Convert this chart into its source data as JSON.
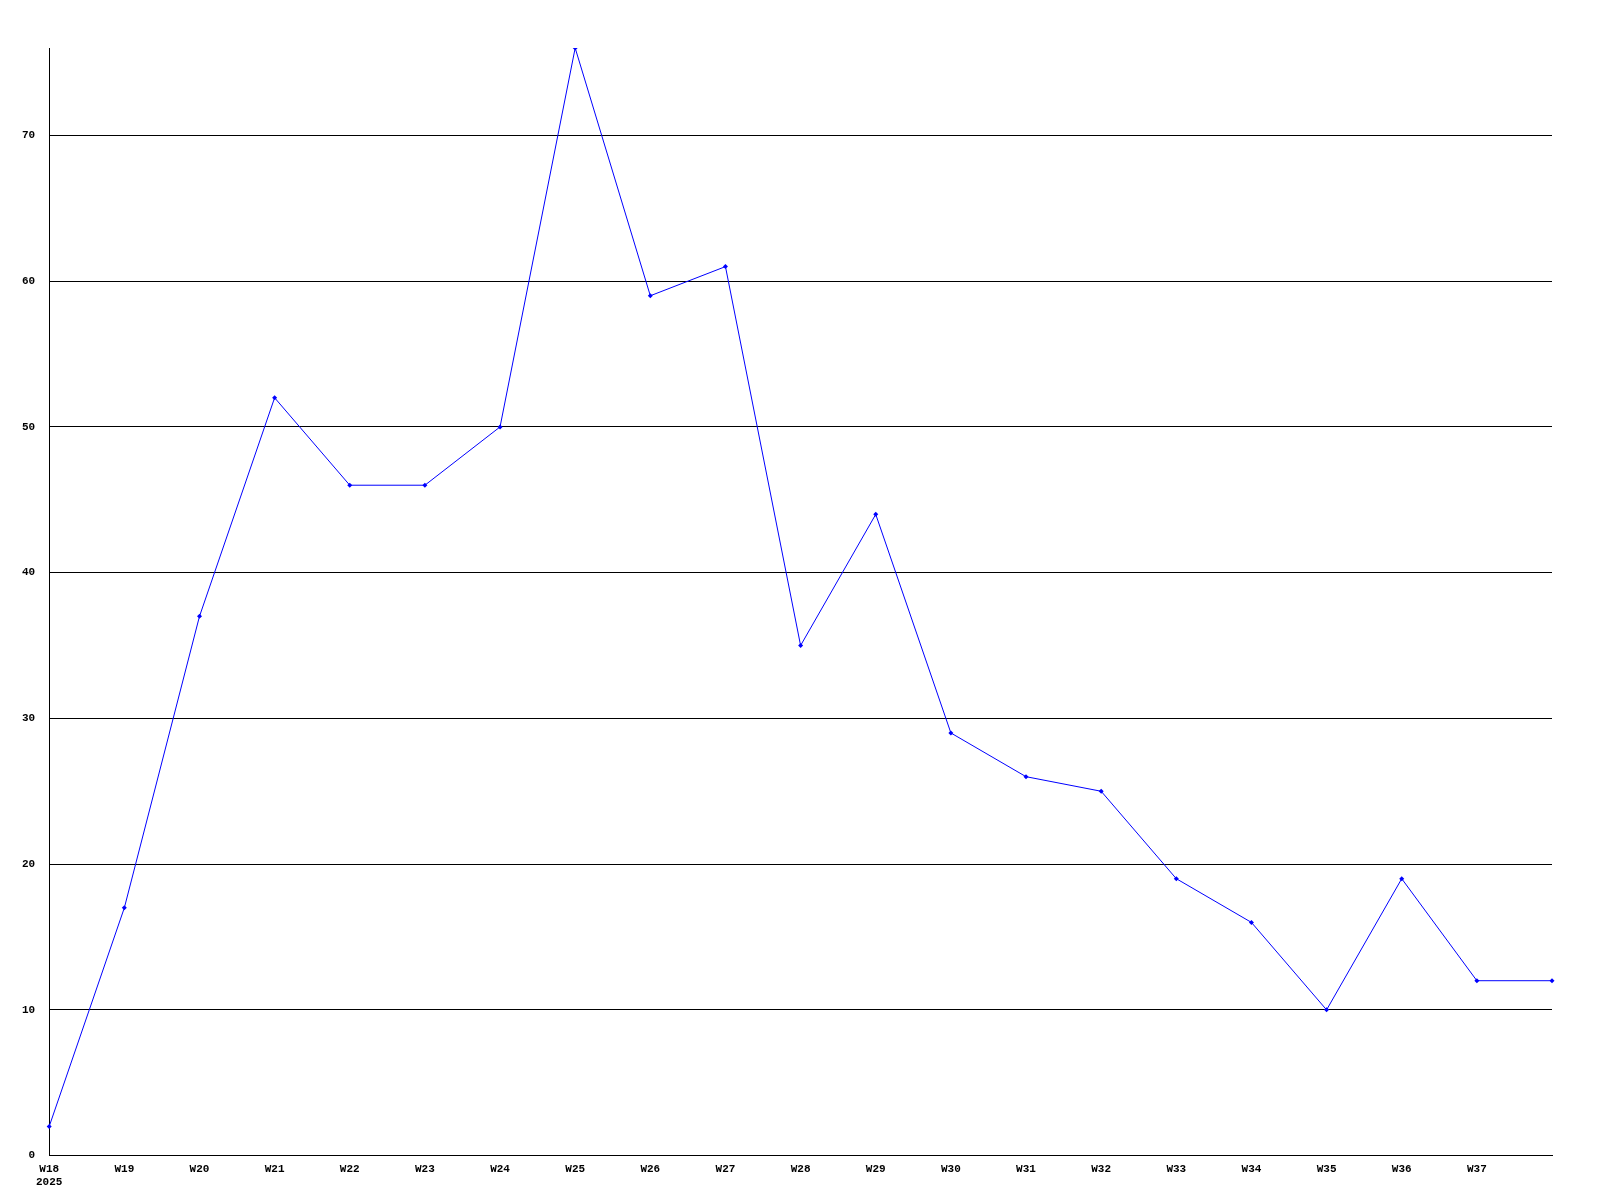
{
  "chart_data": {
    "type": "line",
    "categories": [
      "W18\n2025",
      "W19",
      "W20",
      "W21",
      "W22",
      "W23",
      "W24",
      "W25",
      "W26",
      "W27",
      "W28",
      "W29",
      "W30",
      "W31",
      "W32",
      "W33",
      "W34",
      "W35",
      "W36",
      "W37",
      null
    ],
    "series": [
      {
        "color": "#0000ff",
        "values": [
          2,
          17,
          37,
          52,
          46,
          46,
          50,
          76,
          59,
          61,
          35,
          44,
          29,
          26,
          25,
          19,
          16,
          10,
          19,
          12,
          12
        ]
      }
    ],
    "ylim": [
      0,
      76
    ],
    "yticks": [
      0,
      10,
      20,
      30,
      40,
      50,
      60,
      70
    ],
    "grid": "y",
    "legend": false,
    "marker": "diamond",
    "line_style": "solid"
  }
}
